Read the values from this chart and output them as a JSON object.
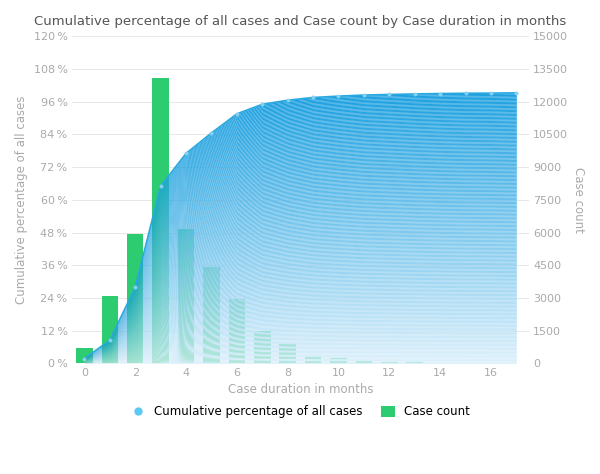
{
  "title": "Cumulative percentage of all cases and Case count by Case duration in months",
  "xlabel": "Case duration in months",
  "ylabel_left": "Cumulative percentage of all cases",
  "ylabel_right": "Case count",
  "bar_x": [
    0,
    1,
    2,
    3,
    4,
    5,
    6,
    7,
    8,
    9,
    10,
    11,
    12,
    13,
    14,
    15,
    16,
    17
  ],
  "bar_heights": [
    700,
    3100,
    5950,
    13100,
    6150,
    4400,
    2950,
    1500,
    900,
    400,
    250,
    100,
    50,
    60,
    30,
    25,
    20,
    15
  ],
  "cum_x": [
    0,
    1,
    2,
    3,
    4,
    5,
    6,
    7,
    8,
    9,
    10,
    11,
    12,
    13,
    14,
    15,
    16,
    17
  ],
  "cum_y": [
    1.8,
    8.5,
    28.0,
    65.0,
    77.0,
    84.5,
    91.5,
    95.0,
    96.5,
    97.5,
    98.0,
    98.4,
    98.6,
    98.8,
    98.95,
    99.05,
    99.1,
    99.2
  ],
  "bar_color": "#2ecc71",
  "line_color": "#29a8e0",
  "fill_color_top": "#1ca0e0",
  "fill_color_bottom": "#ddf0fb",
  "dot_color": "#85d1f0",
  "background_color": "#ffffff",
  "ylim_left": [
    0,
    120
  ],
  "ylim_right": [
    0,
    15000
  ],
  "xlim": [
    -0.5,
    17.5
  ],
  "yticks_left": [
    0,
    12,
    24,
    36,
    48,
    60,
    72,
    84,
    96,
    108,
    120
  ],
  "yticks_left_labels": [
    "0 %",
    "12 %",
    "24 %",
    "36 %",
    "48 %",
    "60 %",
    "72 %",
    "84 %",
    "96 %",
    "108 %",
    "120 %"
  ],
  "yticks_right": [
    0,
    1500,
    3000,
    4500,
    6000,
    7500,
    9000,
    10500,
    12000,
    13500,
    15000
  ],
  "xticks": [
    0,
    2,
    4,
    6,
    8,
    10,
    12,
    14,
    16
  ],
  "legend_labels": [
    "Cumulative percentage of all cases",
    "Case count"
  ],
  "legend_colors": [
    "#5bc8f5",
    "#2ecc71"
  ],
  "title_fontsize": 9.5,
  "tick_fontsize": 8,
  "label_fontsize": 8.5,
  "bar_width": 0.65
}
